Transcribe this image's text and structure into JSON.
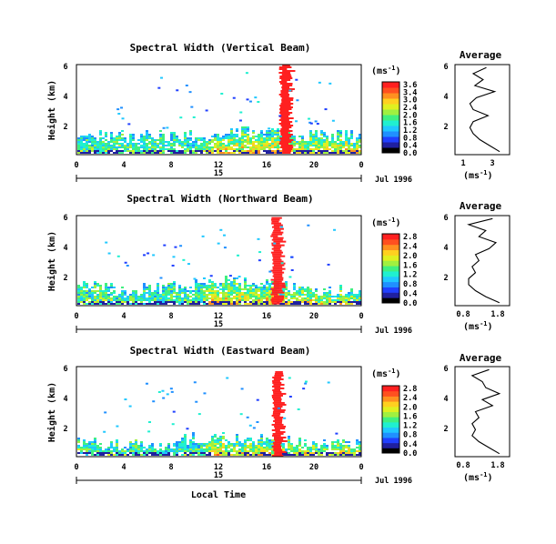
{
  "page": {
    "background": "#ffffff"
  },
  "panels": [
    {
      "title": "Spectral Width (Vertical Beam)",
      "ylabel": "Height (km)",
      "y_ticks": [
        "6",
        "4",
        "2"
      ],
      "x_ticks": [
        "0",
        "4",
        "8",
        "12",
        "16",
        "20",
        "0"
      ],
      "day_label": "15",
      "date_label": "Jul 1996",
      "colorbar": {
        "unit": "(ms",
        "unit_exp": "-1",
        "unit_close": ")",
        "ticks": [
          "3.6",
          "3.4",
          "3.0",
          "2.4",
          "2.0",
          "1.6",
          "1.2",
          "0.8",
          "0.4",
          "0.0"
        ]
      },
      "average": {
        "title": "Average",
        "y_ticks": [
          "6",
          "4",
          "2"
        ],
        "x_ticks": [
          "1",
          "3"
        ],
        "xlabel": "(ms",
        "xlabel_exp": "-1",
        "xlabel_close": ")"
      }
    },
    {
      "title": "Spectral Width (Northward Beam)",
      "ylabel": "Height (km)",
      "y_ticks": [
        "6",
        "4",
        "2"
      ],
      "x_ticks": [
        "0",
        "4",
        "8",
        "12",
        "16",
        "20",
        "0"
      ],
      "day_label": "15",
      "date_label": "Jul 1996",
      "colorbar": {
        "unit": "(ms",
        "unit_exp": "-1",
        "unit_close": ")",
        "ticks": [
          "2.8",
          "2.4",
          "2.0",
          "1.6",
          "1.2",
          "0.8",
          "0.4",
          "0.0"
        ]
      },
      "average": {
        "title": "Average",
        "y_ticks": [
          "6",
          "4",
          "2"
        ],
        "x_ticks": [
          "0.8",
          "1.8"
        ],
        "xlabel": "(ms",
        "xlabel_exp": "-1",
        "xlabel_close": ")"
      }
    },
    {
      "title": "Spectral Width (Eastward Beam)",
      "ylabel": "Height (km)",
      "y_ticks": [
        "6",
        "4",
        "2"
      ],
      "x_ticks": [
        "0",
        "4",
        "8",
        "12",
        "16",
        "20",
        "0"
      ],
      "day_label": "15",
      "date_label": "Jul 1996",
      "colorbar": {
        "unit": "(ms",
        "unit_exp": "-1",
        "unit_close": ")",
        "ticks": [
          "2.8",
          "2.4",
          "2.0",
          "1.6",
          "1.2",
          "0.8",
          "0.4",
          "0.0"
        ]
      },
      "average": {
        "title": "Average",
        "y_ticks": [
          "6",
          "4",
          "2"
        ],
        "x_ticks": [
          "0.8",
          "1.8"
        ],
        "xlabel": "(ms",
        "xlabel_exp": "-1",
        "xlabel_close": ")"
      }
    }
  ],
  "xlabel_bottom": "Local Time",
  "colormap": [
    "#000000",
    "#2020a0",
    "#2040ff",
    "#2090ff",
    "#20c8ff",
    "#20f0d0",
    "#40f080",
    "#a0f040",
    "#e0f020",
    "#ffd020",
    "#ff9020",
    "#ff5020",
    "#ff2020"
  ],
  "chart_data": [
    {
      "type": "heatmap",
      "title": "Spectral Width (Vertical Beam)",
      "xlabel": "Local Time",
      "ylabel": "Height (km)",
      "xlim": [
        0,
        24
      ],
      "ylim": [
        0,
        6
      ],
      "x_axis_date": "15 Jul 1996",
      "colorbar_range": [
        0.0,
        3.6
      ],
      "features": [
        {
          "x": [
            0,
            24
          ],
          "height_top_km": 1.5,
          "approx_value": 0.8
        },
        {
          "x": [
            17.2,
            18.2
          ],
          "height_top_km": 6.0,
          "approx_value": 3.6
        }
      ],
      "average_profile": {
        "height_km": [
          0.2,
          0.6,
          1.0,
          1.4,
          1.8,
          2.2,
          2.6,
          3.0,
          3.4,
          3.8,
          4.2,
          4.6,
          5.0,
          5.4,
          5.8
        ],
        "width_ms": [
          3.2,
          2.6,
          2.0,
          1.6,
          1.4,
          1.6,
          2.5,
          1.6,
          1.4,
          1.8,
          2.9,
          1.7,
          2.2,
          1.6,
          2.4
        ]
      }
    },
    {
      "type": "heatmap",
      "title": "Spectral Width (Northward Beam)",
      "xlabel": "Local Time",
      "ylabel": "Height (km)",
      "xlim": [
        0,
        24
      ],
      "ylim": [
        0,
        6
      ],
      "x_axis_date": "15 Jul 1996",
      "colorbar_range": [
        0.0,
        2.8
      ],
      "features": [
        {
          "x": [
            0,
            24
          ],
          "height_top_km": 1.6,
          "approx_value": 0.8
        },
        {
          "x": [
            16.5,
            17.5
          ],
          "height_top_km": 5.9,
          "approx_value": 2.8
        }
      ],
      "average_profile": {
        "height_km": [
          0.2,
          0.6,
          1.0,
          1.4,
          1.8,
          2.2,
          2.6,
          3.0,
          3.4,
          3.8,
          4.2,
          4.6,
          5.0,
          5.4,
          5.8
        ],
        "width_ms": [
          1.9,
          1.5,
          1.2,
          1.0,
          1.0,
          1.2,
          1.1,
          1.3,
          1.2,
          1.6,
          1.8,
          1.3,
          1.5,
          1.0,
          1.7
        ]
      }
    },
    {
      "type": "heatmap",
      "title": "Spectral Width (Eastward Beam)",
      "xlabel": "Local Time",
      "ylabel": "Height (km)",
      "xlim": [
        0,
        24
      ],
      "ylim": [
        0,
        6
      ],
      "x_axis_date": "15 Jul 1996",
      "colorbar_range": [
        0.0,
        2.8
      ],
      "features": [
        {
          "x": [
            0,
            24
          ],
          "height_top_km": 1.3,
          "approx_value": 0.8
        },
        {
          "x": [
            16.6,
            17.6
          ],
          "height_top_km": 5.7,
          "approx_value": 2.8
        }
      ],
      "average_profile": {
        "height_km": [
          0.2,
          0.6,
          1.0,
          1.4,
          1.8,
          2.2,
          2.6,
          3.0,
          3.4,
          3.8,
          4.2,
          4.6,
          5.0,
          5.4,
          5.8
        ],
        "width_ms": [
          1.9,
          1.6,
          1.3,
          1.1,
          1.2,
          1.1,
          1.3,
          1.2,
          1.7,
          1.4,
          1.9,
          1.5,
          1.4,
          1.1,
          1.6
        ]
      }
    }
  ]
}
